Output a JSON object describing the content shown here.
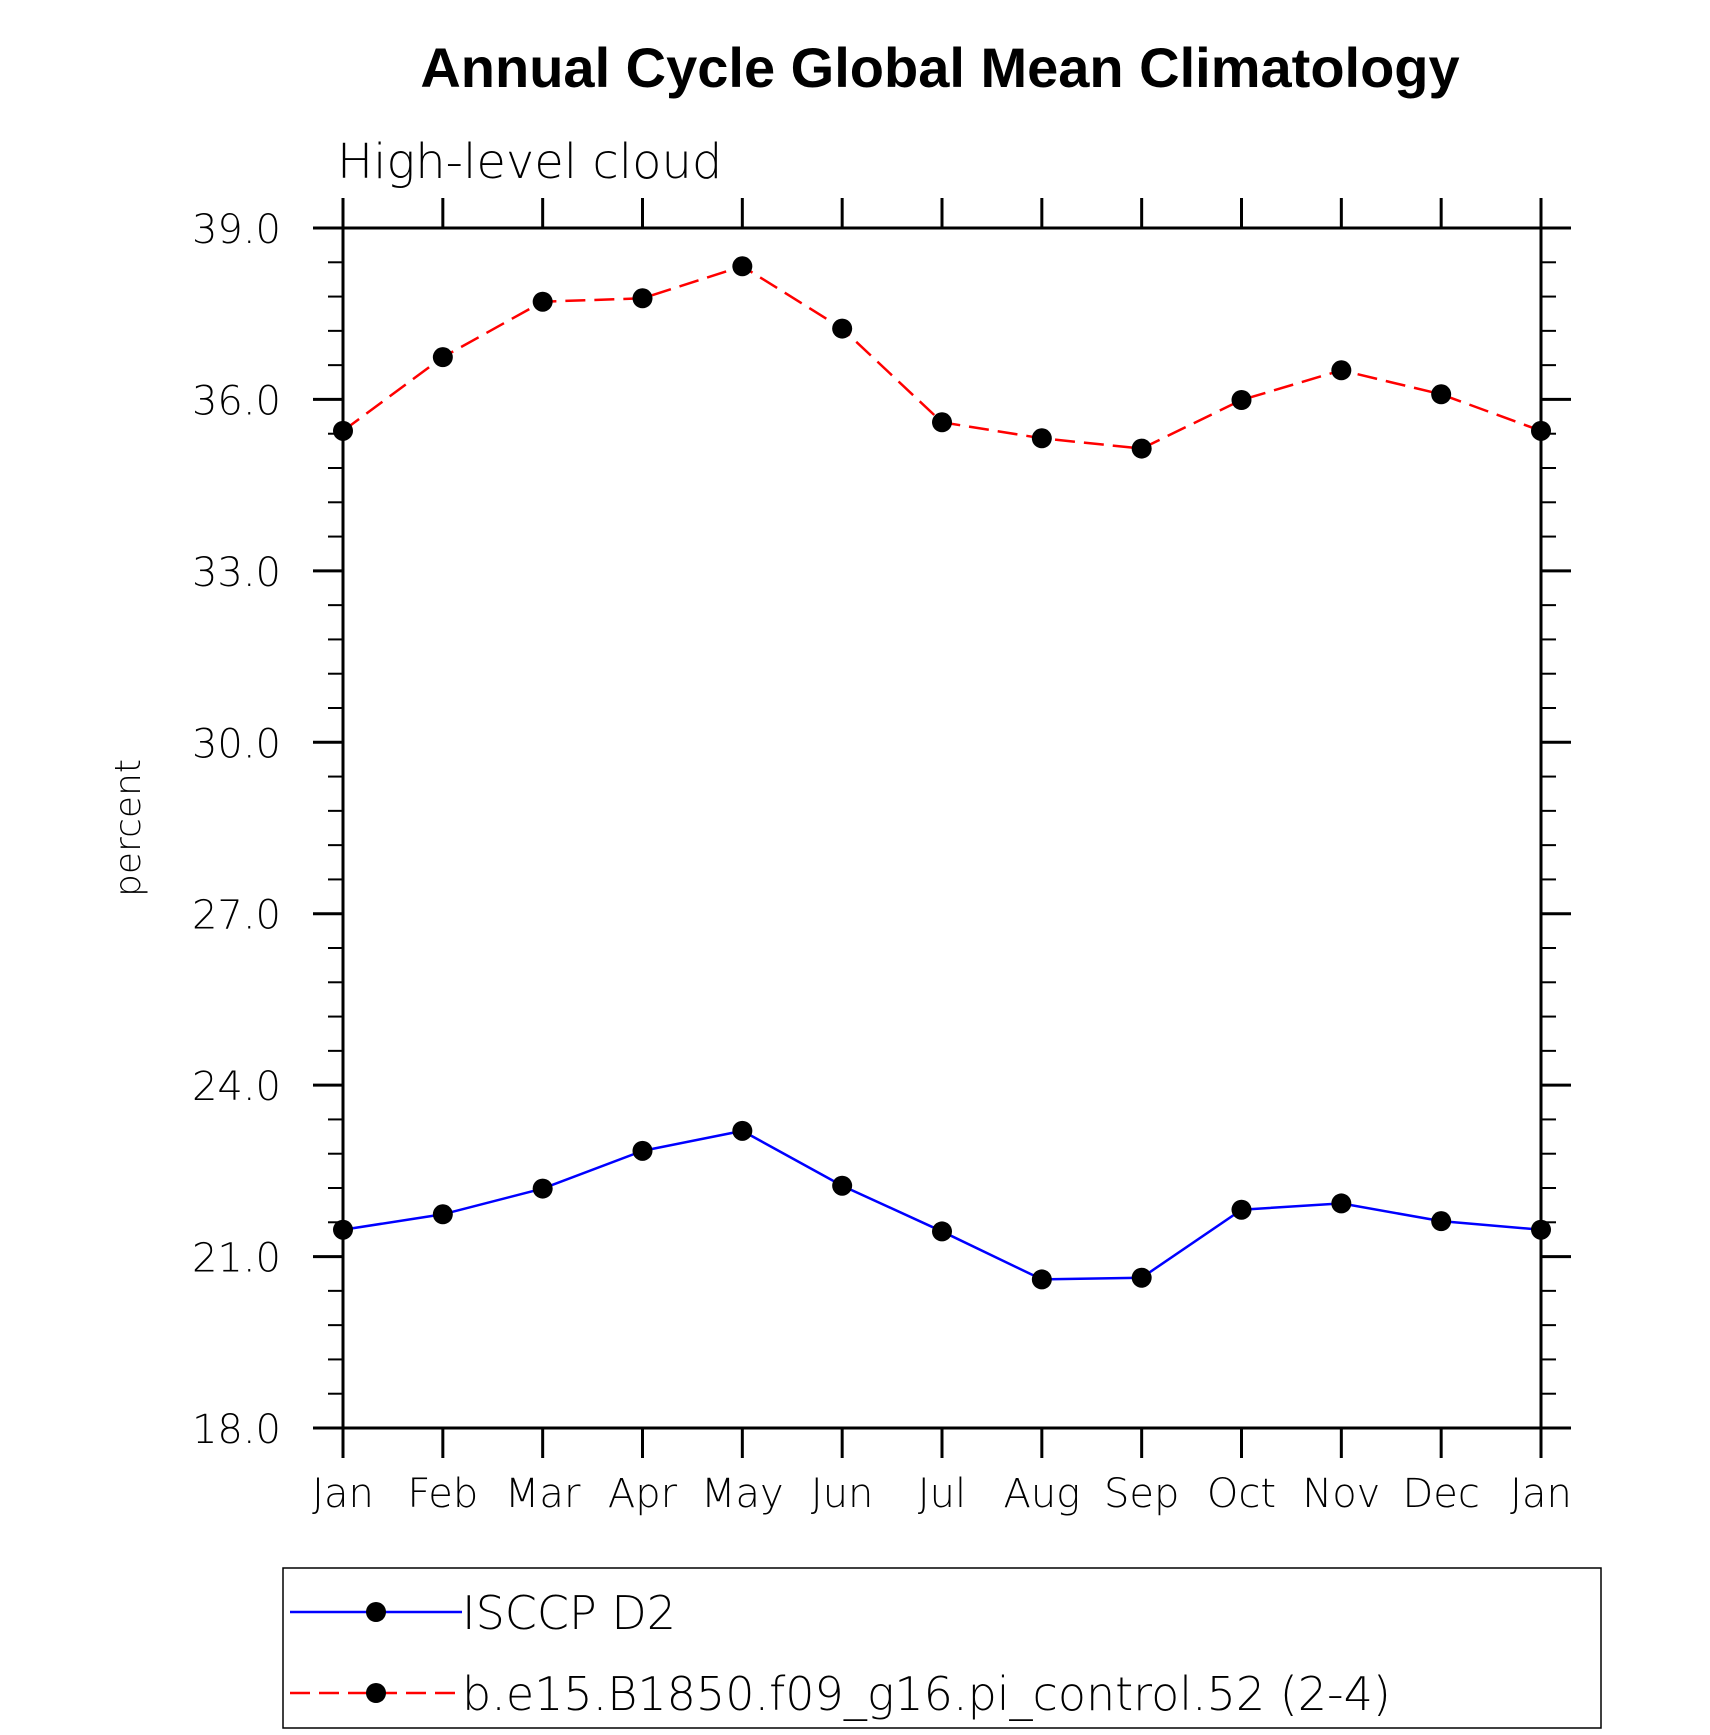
{
  "chart_data": {
    "type": "line",
    "title": "Annual Cycle Global Mean Climatology",
    "subtitle": "High-level cloud",
    "xlabel": "",
    "ylabel": "percent",
    "categories": [
      "Jan",
      "Feb",
      "Mar",
      "Apr",
      "May",
      "Jun",
      "Jul",
      "Aug",
      "Sep",
      "Oct",
      "Nov",
      "Dec",
      "Jan"
    ],
    "ylim": [
      18.0,
      39.0
    ],
    "yticks": [
      "18.0",
      "21.0",
      "24.0",
      "27.0",
      "30.0",
      "33.0",
      "36.0",
      "39.0"
    ],
    "grid": false,
    "legend_position": "bottom",
    "series": [
      {
        "name": "ISCCP D2",
        "color": "#0000ff",
        "line_style": "solid",
        "marker": "filled-circle",
        "values": [
          21.47,
          21.74,
          22.19,
          22.85,
          23.2,
          22.24,
          21.44,
          20.6,
          20.63,
          21.82,
          21.93,
          21.62,
          21.47
        ]
      },
      {
        "name": "b.e15.B1850.f09_g16.pi_control.52 (2-4)",
        "color": "#ff0000",
        "line_style": "dashed",
        "marker": "filled-circle",
        "values": [
          35.45,
          36.74,
          37.71,
          37.77,
          38.33,
          37.24,
          35.6,
          35.32,
          35.14,
          35.99,
          36.51,
          36.09,
          35.45
        ]
      }
    ]
  }
}
